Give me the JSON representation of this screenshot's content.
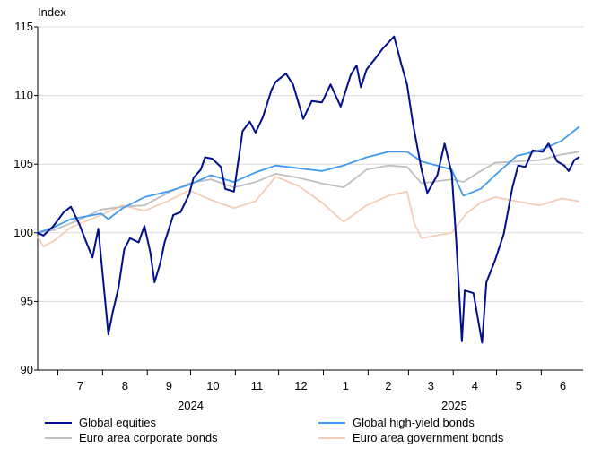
{
  "chart_data": {
    "type": "line",
    "ylabel": "Index",
    "ylim": [
      90,
      115
    ],
    "yticks": [
      90,
      95,
      100,
      105,
      110,
      115
    ],
    "xlim": [
      "2024-06-17",
      "2025-06-30"
    ],
    "month_labels": [
      "7",
      "8",
      "9",
      "10",
      "11",
      "12",
      "1",
      "2",
      "3",
      "4",
      "5",
      "6"
    ],
    "year_labels": [
      "2024",
      "2025"
    ],
    "grid": "horizontal",
    "legend_position": "bottom",
    "series": [
      {
        "name": "Global equities",
        "color": "#000f8c",
        "points": [
          [
            "2024-06-17",
            100.0
          ],
          [
            "2024-06-21",
            99.8
          ],
          [
            "2024-06-28",
            100.5
          ],
          [
            "2024-07-05",
            101.5
          ],
          [
            "2024-07-10",
            101.9
          ],
          [
            "2024-07-16",
            100.6
          ],
          [
            "2024-07-20",
            99.5
          ],
          [
            "2024-07-25",
            98.2
          ],
          [
            "2024-07-29",
            100.3
          ],
          [
            "2024-08-01",
            97.0
          ],
          [
            "2024-08-05",
            92.6
          ],
          [
            "2024-08-08",
            94.2
          ],
          [
            "2024-08-12",
            96.0
          ],
          [
            "2024-08-16",
            98.8
          ],
          [
            "2024-08-20",
            99.6
          ],
          [
            "2024-08-26",
            99.3
          ],
          [
            "2024-08-30",
            100.5
          ],
          [
            "2024-09-03",
            98.6
          ],
          [
            "2024-09-06",
            96.4
          ],
          [
            "2024-09-10",
            97.8
          ],
          [
            "2024-09-13",
            99.3
          ],
          [
            "2024-09-19",
            101.3
          ],
          [
            "2024-09-24",
            101.5
          ],
          [
            "2024-09-30",
            102.8
          ],
          [
            "2024-10-03",
            104.0
          ],
          [
            "2024-10-08",
            104.6
          ],
          [
            "2024-10-11",
            105.5
          ],
          [
            "2024-10-16",
            105.4
          ],
          [
            "2024-10-22",
            104.8
          ],
          [
            "2024-10-25",
            103.2
          ],
          [
            "2024-10-31",
            103.0
          ],
          [
            "2024-11-06",
            107.4
          ],
          [
            "2024-11-11",
            108.1
          ],
          [
            "2024-11-15",
            107.3
          ],
          [
            "2024-11-20",
            108.4
          ],
          [
            "2024-11-26",
            110.4
          ],
          [
            "2024-11-29",
            111.0
          ],
          [
            "2024-12-06",
            111.6
          ],
          [
            "2024-12-11",
            110.8
          ],
          [
            "2024-12-18",
            108.3
          ],
          [
            "2024-12-24",
            109.6
          ],
          [
            "2024-12-31",
            109.5
          ],
          [
            "2025-01-06",
            110.8
          ],
          [
            "2025-01-13",
            109.2
          ],
          [
            "2025-01-20",
            111.5
          ],
          [
            "2025-01-24",
            112.2
          ],
          [
            "2025-01-27",
            110.6
          ],
          [
            "2025-01-31",
            111.9
          ],
          [
            "2025-02-06",
            112.7
          ],
          [
            "2025-02-11",
            113.4
          ],
          [
            "2025-02-19",
            114.3
          ],
          [
            "2025-02-24",
            112.3
          ],
          [
            "2025-02-28",
            110.8
          ],
          [
            "2025-03-04",
            108.0
          ],
          [
            "2025-03-10",
            104.6
          ],
          [
            "2025-03-14",
            102.9
          ],
          [
            "2025-03-21",
            104.2
          ],
          [
            "2025-03-26",
            106.5
          ],
          [
            "2025-03-31",
            104.3
          ],
          [
            "2025-04-03",
            99.5
          ],
          [
            "2025-04-07",
            92.1
          ],
          [
            "2025-04-09",
            95.8
          ],
          [
            "2025-04-15",
            95.6
          ],
          [
            "2025-04-21",
            92.0
          ],
          [
            "2025-04-24",
            96.4
          ],
          [
            "2025-04-30",
            98.0
          ],
          [
            "2025-05-06",
            99.9
          ],
          [
            "2025-05-12",
            103.3
          ],
          [
            "2025-05-16",
            104.9
          ],
          [
            "2025-05-21",
            104.8
          ],
          [
            "2025-05-26",
            106.0
          ],
          [
            "2025-06-02",
            105.9
          ],
          [
            "2025-06-06",
            106.5
          ],
          [
            "2025-06-12",
            105.2
          ],
          [
            "2025-06-17",
            104.9
          ],
          [
            "2025-06-20",
            104.5
          ],
          [
            "2025-06-24",
            105.3
          ],
          [
            "2025-06-27",
            105.5
          ]
        ]
      },
      {
        "name": "Global high-yield bonds",
        "color": "#3f9bef",
        "points": [
          [
            "2024-06-17",
            100.0
          ],
          [
            "2024-06-28",
            100.4
          ],
          [
            "2024-07-10",
            101.0
          ],
          [
            "2024-07-31",
            101.4
          ],
          [
            "2024-08-05",
            101.0
          ],
          [
            "2024-08-15",
            101.8
          ],
          [
            "2024-08-30",
            102.6
          ],
          [
            "2024-09-15",
            103.0
          ],
          [
            "2024-09-30",
            103.5
          ],
          [
            "2024-10-15",
            104.2
          ],
          [
            "2024-10-31",
            103.7
          ],
          [
            "2024-11-15",
            104.4
          ],
          [
            "2024-11-29",
            104.9
          ],
          [
            "2024-12-15",
            104.7
          ],
          [
            "2024-12-31",
            104.5
          ],
          [
            "2025-01-15",
            104.9
          ],
          [
            "2025-01-31",
            105.5
          ],
          [
            "2025-02-15",
            105.9
          ],
          [
            "2025-02-28",
            105.9
          ],
          [
            "2025-03-10",
            105.2
          ],
          [
            "2025-03-31",
            104.6
          ],
          [
            "2025-04-04",
            103.6
          ],
          [
            "2025-04-08",
            102.7
          ],
          [
            "2025-04-20",
            103.2
          ],
          [
            "2025-04-30",
            104.2
          ],
          [
            "2025-05-15",
            105.6
          ],
          [
            "2025-05-31",
            106.0
          ],
          [
            "2025-06-15",
            106.7
          ],
          [
            "2025-06-27",
            107.7
          ]
        ]
      },
      {
        "name": "Euro area corporate bonds",
        "color": "#bfbfbf",
        "points": [
          [
            "2024-06-17",
            100.0
          ],
          [
            "2024-06-28",
            100.2
          ],
          [
            "2024-07-15",
            100.9
          ],
          [
            "2024-07-31",
            101.7
          ],
          [
            "2024-08-15",
            101.9
          ],
          [
            "2024-08-30",
            102.0
          ],
          [
            "2024-09-15",
            102.9
          ],
          [
            "2024-09-30",
            103.6
          ],
          [
            "2024-10-15",
            103.9
          ],
          [
            "2024-10-31",
            103.3
          ],
          [
            "2024-11-15",
            103.7
          ],
          [
            "2024-11-29",
            104.3
          ],
          [
            "2024-12-15",
            104.0
          ],
          [
            "2024-12-31",
            103.6
          ],
          [
            "2025-01-15",
            103.3
          ],
          [
            "2025-01-31",
            104.6
          ],
          [
            "2025-02-15",
            104.9
          ],
          [
            "2025-02-28",
            104.8
          ],
          [
            "2025-03-10",
            103.6
          ],
          [
            "2025-03-31",
            103.9
          ],
          [
            "2025-04-08",
            103.7
          ],
          [
            "2025-04-20",
            104.5
          ],
          [
            "2025-04-30",
            105.1
          ],
          [
            "2025-05-15",
            105.2
          ],
          [
            "2025-05-31",
            105.3
          ],
          [
            "2025-06-15",
            105.7
          ],
          [
            "2025-06-27",
            105.9
          ]
        ]
      },
      {
        "name": "Euro area government bonds",
        "color": "#f4cdb8",
        "points": [
          [
            "2024-06-17",
            99.7
          ],
          [
            "2024-06-21",
            99.0
          ],
          [
            "2024-06-28",
            99.4
          ],
          [
            "2024-07-10",
            100.4
          ],
          [
            "2024-07-31",
            101.3
          ],
          [
            "2024-08-15",
            102.0
          ],
          [
            "2024-08-30",
            101.6
          ],
          [
            "2024-09-15",
            102.3
          ],
          [
            "2024-09-30",
            103.1
          ],
          [
            "2024-10-15",
            102.4
          ],
          [
            "2024-10-31",
            101.8
          ],
          [
            "2024-11-15",
            102.3
          ],
          [
            "2024-11-29",
            104.1
          ],
          [
            "2024-12-15",
            103.4
          ],
          [
            "2024-12-31",
            102.2
          ],
          [
            "2025-01-15",
            100.8
          ],
          [
            "2025-01-31",
            102.0
          ],
          [
            "2025-02-15",
            102.7
          ],
          [
            "2025-02-28",
            103.0
          ],
          [
            "2025-03-05",
            100.7
          ],
          [
            "2025-03-10",
            99.6
          ],
          [
            "2025-03-20",
            99.8
          ],
          [
            "2025-03-31",
            100.0
          ],
          [
            "2025-04-10",
            101.4
          ],
          [
            "2025-04-20",
            102.2
          ],
          [
            "2025-04-30",
            102.6
          ],
          [
            "2025-05-15",
            102.3
          ],
          [
            "2025-05-31",
            102.0
          ],
          [
            "2025-06-15",
            102.5
          ],
          [
            "2025-06-27",
            102.3
          ]
        ]
      }
    ]
  }
}
